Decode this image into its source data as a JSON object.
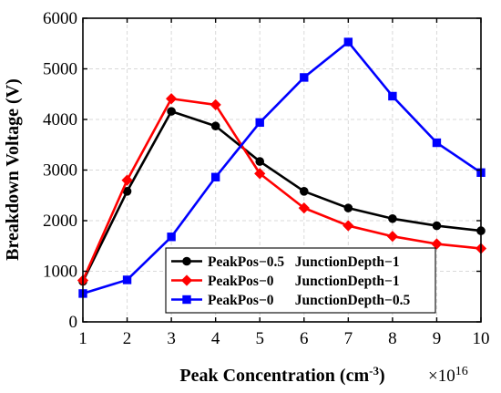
{
  "chart_data": {
    "type": "line",
    "xlabel": "Peak Concentration (cm",
    "xlabel_sup": "-3",
    "xlabel_tail": ")",
    "x_multiplier": "×10",
    "x_multiplier_exp": "16",
    "ylabel": "Breakdown Voltage (V)",
    "xlim": [
      1,
      10
    ],
    "ylim": [
      0,
      6000
    ],
    "x_ticks": [
      1,
      2,
      3,
      4,
      5,
      6,
      7,
      8,
      9,
      10
    ],
    "y_ticks": [
      0,
      1000,
      2000,
      3000,
      4000,
      5000,
      6000
    ],
    "grid": true,
    "legend_position": "bottom-right",
    "x": [
      1,
      2,
      3,
      4,
      5,
      6,
      7,
      8,
      9,
      10
    ],
    "series": [
      {
        "name": "PeakPos−0.5   JunctionDepth−1",
        "color": "#000000",
        "marker": "circle",
        "values": [
          800,
          2580,
          4160,
          3870,
          3170,
          2580,
          2250,
          2040,
          1900,
          1800
        ]
      },
      {
        "name": "PeakPos−0      JunctionDepth−1",
        "color": "#ff0000",
        "marker": "diamond",
        "values": [
          820,
          2800,
          4410,
          4290,
          2930,
          2250,
          1900,
          1690,
          1540,
          1450
        ]
      },
      {
        "name": "PeakPos−0      JunctionDepth−0.5",
        "color": "#0000ff",
        "marker": "square",
        "values": [
          560,
          830,
          1680,
          2860,
          3940,
          4830,
          5530,
          4460,
          3540,
          2950
        ]
      }
    ]
  }
}
